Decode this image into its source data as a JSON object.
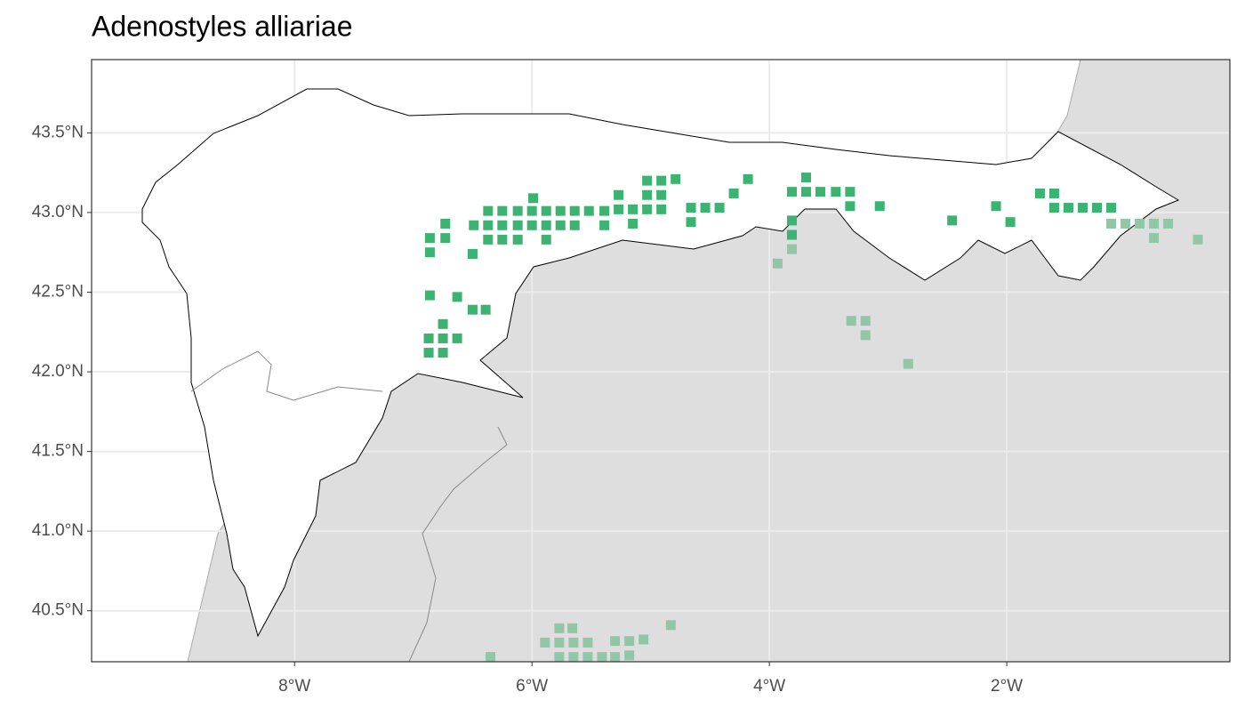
{
  "chart_data": {
    "type": "scatter",
    "title": "Adenostyles alliariae",
    "xlim": [
      -9.71,
      -0.12
    ],
    "ylim": [
      40.18,
      43.96
    ],
    "xticks": [
      {
        "value": -8,
        "label": "8°W"
      },
      {
        "value": -6,
        "label": "6°W"
      },
      {
        "value": -4,
        "label": "4°W"
      },
      {
        "value": -2,
        "label": "2°W"
      }
    ],
    "yticks": [
      {
        "value": 40.5,
        "label": "40.5°N"
      },
      {
        "value": 41.0,
        "label": "41.0°N"
      },
      {
        "value": 41.5,
        "label": "41.5°N"
      },
      {
        "value": 42.0,
        "label": "42.0°N"
      },
      {
        "value": 42.5,
        "label": "42.5°N"
      },
      {
        "value": 43.0,
        "label": "43.0°N"
      },
      {
        "value": 43.5,
        "label": "43.5°N"
      }
    ],
    "grid": true,
    "series": [
      {
        "color": "#3cb371",
        "x": [
          -5.99,
          -6.86,
          -6.73,
          -6.73,
          -6.86,
          -6.86,
          -6.63,
          -6.5,
          -6.39,
          -6.87,
          -6.75,
          -6.75,
          -6.63,
          -6.87,
          -6.75,
          -6.49,
          -6.5,
          -6.37,
          -6.37,
          -6.37,
          -6.25,
          -6.25,
          -6.25,
          -6.12,
          -6.12,
          -6.12,
          -6.0,
          -6.0,
          -5.88,
          -5.88,
          -5.88,
          -5.76,
          -5.76,
          -5.64,
          -5.64,
          -5.52,
          -5.39,
          -5.39,
          -5.27,
          -5.27,
          -5.15,
          -5.15,
          -5.03,
          -5.03,
          -5.03,
          -4.91,
          -4.91,
          -4.91,
          -4.79,
          -4.66,
          -4.66,
          -4.54,
          -4.42,
          -4.3,
          -4.18,
          -3.81,
          -3.81,
          -3.81,
          -3.69,
          -3.69,
          -3.57,
          -3.44,
          -3.32,
          -3.32,
          -3.07,
          -2.46,
          -2.09,
          -1.97,
          -1.72,
          -1.6,
          -1.6,
          -1.48,
          -1.36,
          -1.24,
          -1.12
        ],
        "y": [
          43.09,
          42.84,
          42.93,
          42.84,
          42.75,
          42.48,
          42.47,
          42.39,
          42.39,
          42.21,
          42.3,
          42.21,
          42.21,
          42.12,
          42.12,
          42.92,
          42.74,
          43.01,
          42.92,
          42.83,
          43.01,
          42.92,
          42.83,
          43.01,
          42.92,
          42.83,
          43.01,
          42.92,
          43.01,
          42.92,
          42.83,
          43.01,
          42.92,
          43.01,
          42.92,
          43.01,
          43.01,
          42.92,
          43.11,
          43.02,
          43.02,
          42.93,
          43.2,
          43.11,
          43.02,
          43.2,
          43.11,
          43.02,
          43.21,
          43.03,
          42.94,
          43.03,
          43.03,
          43.12,
          43.21,
          43.13,
          42.95,
          42.86,
          43.22,
          43.13,
          43.13,
          43.13,
          43.13,
          43.04,
          43.04,
          42.95,
          43.04,
          42.94,
          43.12,
          43.12,
          43.03,
          43.03,
          43.03,
          43.03,
          43.03
        ]
      },
      {
        "color": "#93c6a9",
        "x": [
          -3.93,
          -3.81,
          -3.31,
          -3.19,
          -3.19,
          -2.83,
          -1.12,
          -1.0,
          -0.88,
          -0.76,
          -0.64,
          -0.76,
          -0.39,
          -5.77,
          -5.66,
          -5.89,
          -5.77,
          -5.65,
          -5.53,
          -5.77,
          -5.65,
          -5.53,
          -5.41,
          -5.3,
          -5.18,
          -5.3,
          -5.18,
          -5.06,
          -4.83,
          -6.35
        ],
        "y": [
          42.68,
          42.77,
          42.32,
          42.32,
          42.23,
          42.05,
          42.93,
          42.93,
          42.93,
          42.93,
          42.93,
          42.84,
          42.83,
          40.39,
          40.39,
          40.3,
          40.3,
          40.3,
          40.3,
          40.21,
          40.21,
          40.21,
          40.21,
          40.21,
          40.22,
          40.31,
          40.31,
          40.32,
          40.41,
          40.21
        ]
      }
    ]
  }
}
